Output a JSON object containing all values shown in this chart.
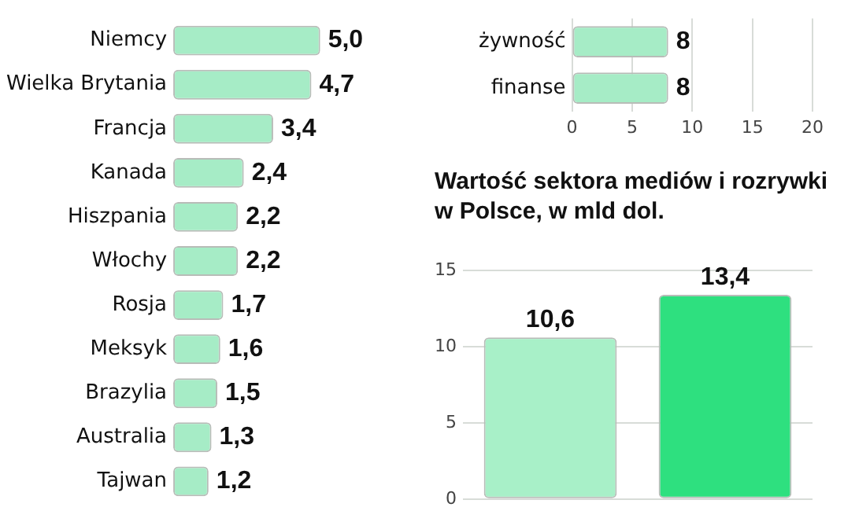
{
  "chart_data": [
    {
      "type": "bar",
      "orientation": "horizontal",
      "categories": [
        "Niemcy",
        "Wielka Brytania",
        "Francja",
        "Kanada",
        "Hiszpania",
        "Włochy",
        "Rosja",
        "Meksyk",
        "Brazylia",
        "Australia",
        "Tajwan"
      ],
      "values": [
        5.0,
        4.7,
        3.4,
        2.4,
        2.2,
        2.2,
        1.7,
        1.6,
        1.5,
        1.3,
        1.2
      ],
      "value_labels": [
        "5,0",
        "4,7",
        "3,4",
        "2,4",
        "2,2",
        "2,2",
        "1,7",
        "1,6",
        "1,5",
        "1,3",
        "1,2"
      ],
      "color": "#a6ecc6",
      "tick_labels": "y",
      "grid": false
    },
    {
      "type": "bar",
      "orientation": "horizontal",
      "categories": [
        "żywność",
        "finanse"
      ],
      "values": [
        8,
        8
      ],
      "value_labels": [
        "8",
        "8"
      ],
      "color": "#a6ecc6",
      "xlim": [
        0,
        20
      ],
      "xticks": [
        0,
        5,
        10,
        15,
        20
      ],
      "grid": "x"
    },
    {
      "type": "bar",
      "title": "Wartość sektora mediów i rozrywki w Polsce, w mld dol.",
      "categories": [
        null,
        null
      ],
      "values": [
        10.6,
        13.4
      ],
      "value_labels": [
        "10,6",
        "13,4"
      ],
      "colors": [
        "#a8f0c8",
        "#2ee07f"
      ],
      "ylim": [
        0,
        15
      ],
      "yticks": [
        0,
        5,
        10,
        15
      ],
      "grid": "y",
      "tick_labels": "y"
    }
  ]
}
